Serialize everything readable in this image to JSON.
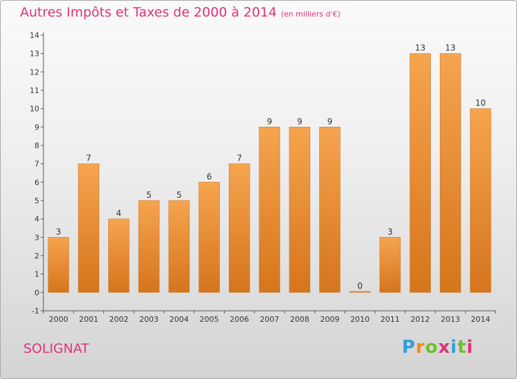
{
  "header": {
    "title": "Autres Impôts et Taxes de 2000 à 2014",
    "subtitle": "(en milliers d'€)"
  },
  "footer": {
    "commune": "SOLIGNAT",
    "logo_text": "Proxiti"
  },
  "colors": {
    "bar_light": "#f6a44f",
    "bar_dark": "#d5751c",
    "title": "#e0317a",
    "axis": "#555555"
  },
  "chart_data": {
    "type": "bar",
    "title": "Autres Impôts et Taxes de 2000 à 2014",
    "subtitle": "(en milliers d'€)",
    "xlabel": "",
    "ylabel": "",
    "categories": [
      "2000",
      "2001",
      "2002",
      "2003",
      "2004",
      "2005",
      "2006",
      "2007",
      "2008",
      "2009",
      "2010",
      "2011",
      "2012",
      "2013",
      "2014"
    ],
    "values": [
      3,
      7,
      4,
      5,
      5,
      6,
      7,
      9,
      9,
      9,
      0,
      3,
      13,
      13,
      10
    ],
    "data_labels": [
      "3",
      "7",
      "4",
      "5",
      "5",
      "6",
      "7",
      "9",
      "9",
      "9",
      "0",
      "3",
      "13",
      "13",
      "10"
    ],
    "y_ticks": [
      "-1",
      "0",
      "1",
      "2",
      "3",
      "4",
      "5",
      "6",
      "7",
      "8",
      "9",
      "10",
      "11",
      "12",
      "13",
      "14"
    ],
    "ylim": [
      -1,
      14
    ],
    "grid": false,
    "legend": "none"
  }
}
